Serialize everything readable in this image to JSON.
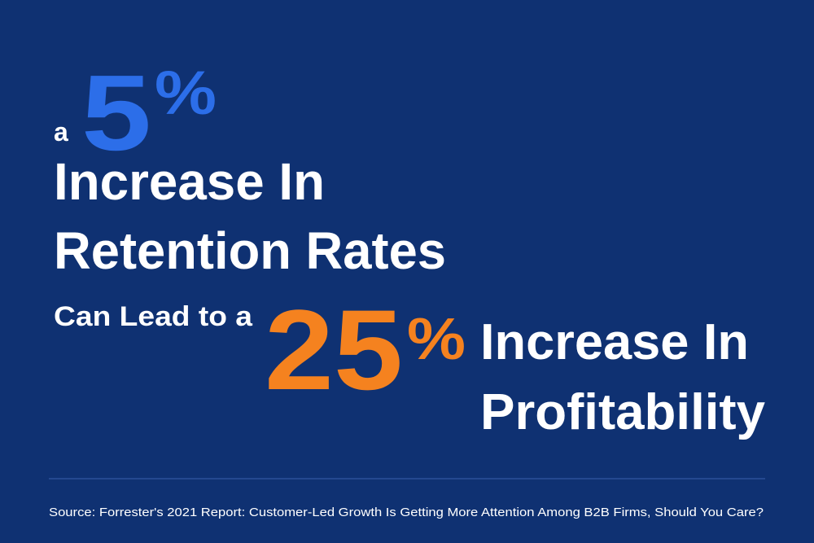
{
  "headline": {
    "lead": "a",
    "stat1": {
      "number": "5",
      "unit": "%"
    },
    "line1": "Increase In",
    "line2": "Retention Rates",
    "line3": "Can Lead to a",
    "stat2": {
      "number": "25",
      "unit": "%"
    },
    "line4": "Increase In",
    "line5": "Profitability"
  },
  "source": "Source: Forrester's 2021 Report: Customer-Led Growth Is Getting More Attention Among B2B Firms, Should You Care?"
}
